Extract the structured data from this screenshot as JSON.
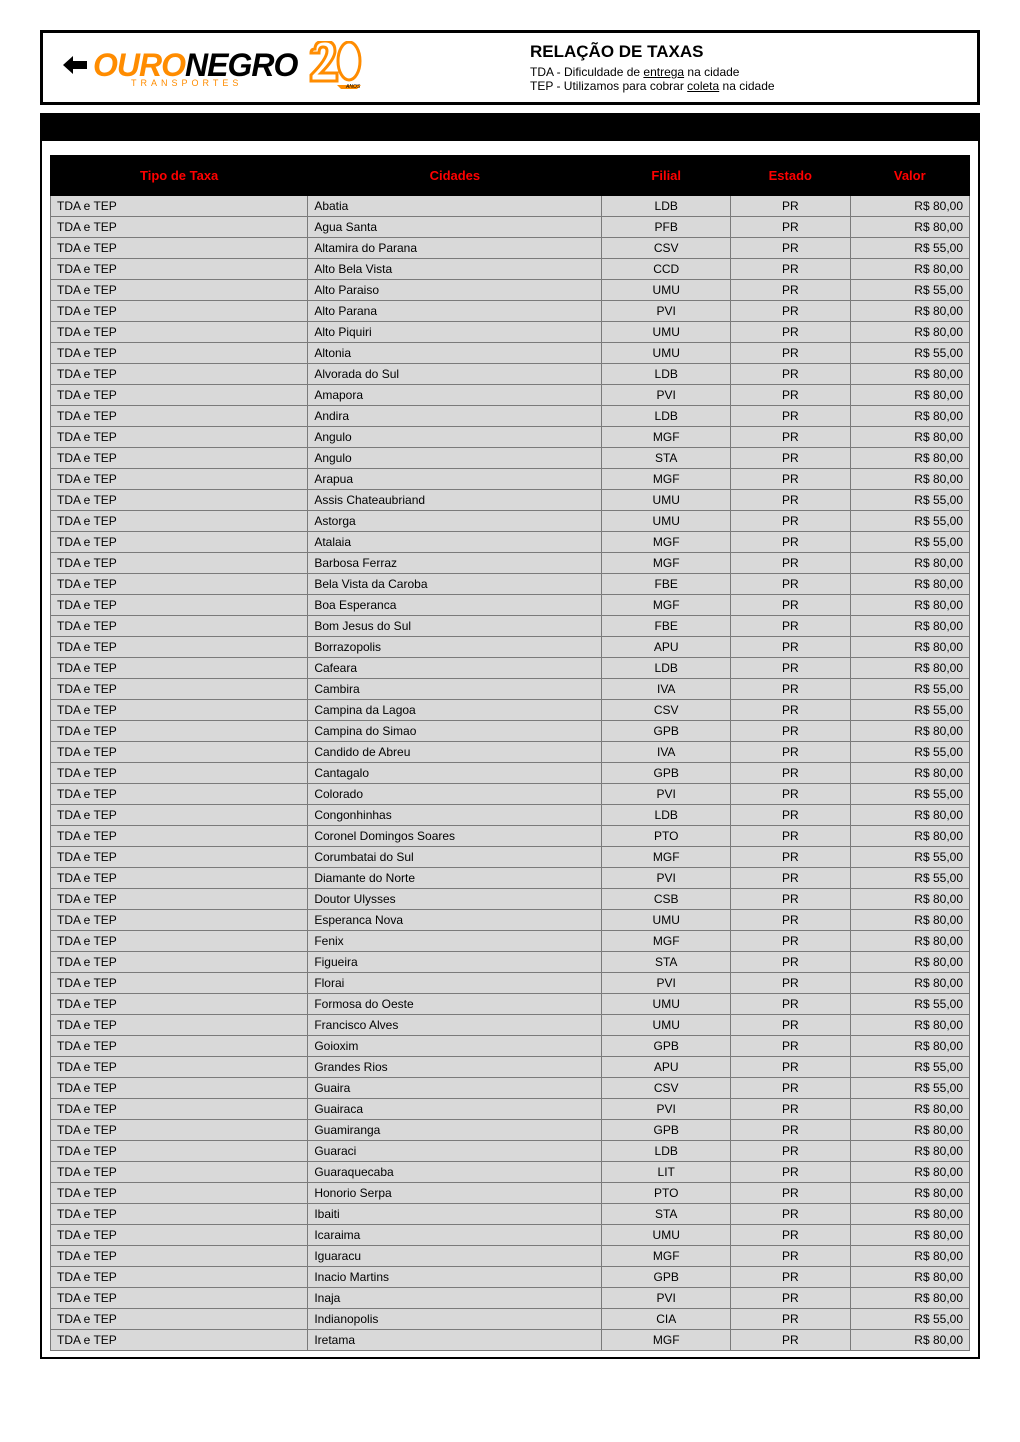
{
  "header": {
    "logo_ouro": "OURO",
    "logo_negro": "NEGRO",
    "logo_transportes": "TRANSPORTES",
    "title": "RELAÇÃO DE TAXAS",
    "sub1_prefix": "TDA - Dificuldade de ",
    "sub1_underline": "entrega",
    "sub1_suffix": " na cidade",
    "sub2_prefix": "TEP - Utilizamos para cobrar ",
    "sub2_underline": "coleta",
    "sub2_suffix": " na cidade"
  },
  "table": {
    "columns": {
      "tipo": "Tipo de Taxa",
      "cidade": "Cidades",
      "filial": "Filial",
      "estado": "Estado",
      "valor": "Valor"
    },
    "rows": [
      {
        "tipo": "TDA e TEP",
        "cidade": "Abatia",
        "filial": "LDB",
        "estado": "PR",
        "valor": "R$ 80,00"
      },
      {
        "tipo": "TDA e TEP",
        "cidade": "Agua Santa",
        "filial": "PFB",
        "estado": "PR",
        "valor": "R$ 80,00"
      },
      {
        "tipo": "TDA e TEP",
        "cidade": "Altamira do Parana",
        "filial": "CSV",
        "estado": "PR",
        "valor": "R$ 55,00"
      },
      {
        "tipo": "TDA e TEP",
        "cidade": "Alto Bela Vista",
        "filial": "CCD",
        "estado": "PR",
        "valor": "R$ 80,00"
      },
      {
        "tipo": "TDA e TEP",
        "cidade": "Alto Paraiso",
        "filial": "UMU",
        "estado": "PR",
        "valor": "R$ 55,00"
      },
      {
        "tipo": "TDA e TEP",
        "cidade": "Alto Parana",
        "filial": "PVI",
        "estado": "PR",
        "valor": "R$ 80,00"
      },
      {
        "tipo": "TDA e TEP",
        "cidade": "Alto Piquiri",
        "filial": "UMU",
        "estado": "PR",
        "valor": "R$ 80,00"
      },
      {
        "tipo": "TDA e TEP",
        "cidade": "Altonia",
        "filial": "UMU",
        "estado": "PR",
        "valor": "R$ 55,00"
      },
      {
        "tipo": "TDA e TEP",
        "cidade": "Alvorada do Sul",
        "filial": "LDB",
        "estado": "PR",
        "valor": "R$ 80,00"
      },
      {
        "tipo": "TDA e TEP",
        "cidade": "Amapora",
        "filial": "PVI",
        "estado": "PR",
        "valor": "R$ 80,00"
      },
      {
        "tipo": "TDA e TEP",
        "cidade": "Andira",
        "filial": "LDB",
        "estado": "PR",
        "valor": "R$ 80,00"
      },
      {
        "tipo": "TDA e TEP",
        "cidade": "Angulo",
        "filial": "MGF",
        "estado": "PR",
        "valor": "R$ 80,00"
      },
      {
        "tipo": "TDA e TEP",
        "cidade": "Angulo",
        "filial": "STA",
        "estado": "PR",
        "valor": "R$ 80,00"
      },
      {
        "tipo": "TDA e TEP",
        "cidade": "Arapua",
        "filial": "MGF",
        "estado": "PR",
        "valor": "R$ 80,00"
      },
      {
        "tipo": "TDA e TEP",
        "cidade": "Assis Chateaubriand",
        "filial": "UMU",
        "estado": "PR",
        "valor": "R$ 55,00"
      },
      {
        "tipo": "TDA e TEP",
        "cidade": "Astorga",
        "filial": "UMU",
        "estado": "PR",
        "valor": "R$ 55,00"
      },
      {
        "tipo": "TDA e TEP",
        "cidade": "Atalaia",
        "filial": "MGF",
        "estado": "PR",
        "valor": "R$ 55,00"
      },
      {
        "tipo": "TDA e TEP",
        "cidade": "Barbosa Ferraz",
        "filial": "MGF",
        "estado": "PR",
        "valor": "R$ 80,00"
      },
      {
        "tipo": "TDA e TEP",
        "cidade": "Bela Vista da Caroba",
        "filial": "FBE",
        "estado": "PR",
        "valor": "R$ 80,00"
      },
      {
        "tipo": "TDA e TEP",
        "cidade": "Boa Esperanca",
        "filial": "MGF",
        "estado": "PR",
        "valor": "R$ 80,00"
      },
      {
        "tipo": "TDA e TEP",
        "cidade": "Bom Jesus do Sul",
        "filial": "FBE",
        "estado": "PR",
        "valor": "R$ 80,00"
      },
      {
        "tipo": "TDA e TEP",
        "cidade": "Borrazopolis",
        "filial": "APU",
        "estado": "PR",
        "valor": "R$ 80,00"
      },
      {
        "tipo": "TDA e TEP",
        "cidade": "Cafeara",
        "filial": "LDB",
        "estado": "PR",
        "valor": "R$ 80,00"
      },
      {
        "tipo": "TDA e TEP",
        "cidade": "Cambira",
        "filial": "IVA",
        "estado": "PR",
        "valor": "R$ 55,00"
      },
      {
        "tipo": "TDA e TEP",
        "cidade": "Campina da Lagoa",
        "filial": "CSV",
        "estado": "PR",
        "valor": "R$ 55,00"
      },
      {
        "tipo": "TDA e TEP",
        "cidade": "Campina do Simao",
        "filial": "GPB",
        "estado": "PR",
        "valor": "R$ 80,00"
      },
      {
        "tipo": "TDA e TEP",
        "cidade": "Candido de Abreu",
        "filial": "IVA",
        "estado": "PR",
        "valor": "R$ 55,00"
      },
      {
        "tipo": "TDA e TEP",
        "cidade": "Cantagalo",
        "filial": "GPB",
        "estado": "PR",
        "valor": "R$ 80,00"
      },
      {
        "tipo": "TDA e TEP",
        "cidade": "Colorado",
        "filial": "PVI",
        "estado": "PR",
        "valor": "R$ 55,00"
      },
      {
        "tipo": "TDA e TEP",
        "cidade": "Congonhinhas",
        "filial": "LDB",
        "estado": "PR",
        "valor": "R$ 80,00"
      },
      {
        "tipo": "TDA e TEP",
        "cidade": "Coronel Domingos Soares",
        "filial": "PTO",
        "estado": "PR",
        "valor": "R$ 80,00"
      },
      {
        "tipo": "TDA e TEP",
        "cidade": "Corumbatai do Sul",
        "filial": "MGF",
        "estado": "PR",
        "valor": "R$ 55,00"
      },
      {
        "tipo": "TDA e TEP",
        "cidade": "Diamante do Norte",
        "filial": "PVI",
        "estado": "PR",
        "valor": "R$ 55,00"
      },
      {
        "tipo": "TDA e TEP",
        "cidade": "Doutor Ulysses",
        "filial": "CSB",
        "estado": "PR",
        "valor": "R$ 80,00"
      },
      {
        "tipo": "TDA e TEP",
        "cidade": "Esperanca Nova",
        "filial": "UMU",
        "estado": "PR",
        "valor": "R$ 80,00"
      },
      {
        "tipo": "TDA e TEP",
        "cidade": "Fenix",
        "filial": "MGF",
        "estado": "PR",
        "valor": "R$ 80,00"
      },
      {
        "tipo": "TDA e TEP",
        "cidade": "Figueira",
        "filial": "STA",
        "estado": "PR",
        "valor": "R$ 80,00"
      },
      {
        "tipo": "TDA e TEP",
        "cidade": "Florai",
        "filial": "PVI",
        "estado": "PR",
        "valor": "R$ 80,00"
      },
      {
        "tipo": "TDA e TEP",
        "cidade": "Formosa do Oeste",
        "filial": "UMU",
        "estado": "PR",
        "valor": "R$ 55,00"
      },
      {
        "tipo": "TDA e TEP",
        "cidade": "Francisco Alves",
        "filial": "UMU",
        "estado": "PR",
        "valor": "R$ 80,00"
      },
      {
        "tipo": "TDA e TEP",
        "cidade": "Goioxim",
        "filial": "GPB",
        "estado": "PR",
        "valor": "R$ 80,00"
      },
      {
        "tipo": "TDA e TEP",
        "cidade": "Grandes Rios",
        "filial": "APU",
        "estado": "PR",
        "valor": "R$ 55,00"
      },
      {
        "tipo": "TDA e TEP",
        "cidade": "Guaira",
        "filial": "CSV",
        "estado": "PR",
        "valor": "R$ 55,00"
      },
      {
        "tipo": "TDA e TEP",
        "cidade": "Guairaca",
        "filial": "PVI",
        "estado": "PR",
        "valor": "R$ 80,00"
      },
      {
        "tipo": "TDA e TEP",
        "cidade": "Guamiranga",
        "filial": "GPB",
        "estado": "PR",
        "valor": "R$ 80,00"
      },
      {
        "tipo": "TDA e TEP",
        "cidade": "Guaraci",
        "filial": "LDB",
        "estado": "PR",
        "valor": "R$ 80,00"
      },
      {
        "tipo": "TDA e TEP",
        "cidade": "Guaraquecaba",
        "filial": "LIT",
        "estado": "PR",
        "valor": "R$ 80,00"
      },
      {
        "tipo": "TDA e TEP",
        "cidade": "Honorio Serpa",
        "filial": "PTO",
        "estado": "PR",
        "valor": "R$ 80,00"
      },
      {
        "tipo": "TDA e TEP",
        "cidade": "Ibaiti",
        "filial": "STA",
        "estado": "PR",
        "valor": "R$ 80,00"
      },
      {
        "tipo": "TDA e TEP",
        "cidade": "Icaraima",
        "filial": "UMU",
        "estado": "PR",
        "valor": "R$ 80,00"
      },
      {
        "tipo": "TDA e TEP",
        "cidade": "Iguaracu",
        "filial": "MGF",
        "estado": "PR",
        "valor": "R$ 80,00"
      },
      {
        "tipo": "TDA e TEP",
        "cidade": "Inacio Martins",
        "filial": "GPB",
        "estado": "PR",
        "valor": "R$ 80,00"
      },
      {
        "tipo": "TDA e TEP",
        "cidade": "Inaja",
        "filial": "PVI",
        "estado": "PR",
        "valor": "R$ 80,00"
      },
      {
        "tipo": "TDA e TEP",
        "cidade": "Indianopolis",
        "filial": "CIA",
        "estado": "PR",
        "valor": "R$ 55,00"
      },
      {
        "tipo": "TDA e TEP",
        "cidade": "Iretama",
        "filial": "MGF",
        "estado": "PR",
        "valor": "R$ 80,00"
      }
    ],
    "styling": {
      "header_bg": "#000000",
      "header_text_color": "#ff0000",
      "cell_bg": "#d9d9d9",
      "cell_text_color": "#000000",
      "border_color": "#7a7a7a",
      "font_size_header": 13,
      "font_size_cell": 12,
      "col_widths": {
        "tipo": "28%",
        "cidade": "32%",
        "filial": "14%",
        "estado": "13%",
        "valor": "13%"
      },
      "col_align": {
        "tipo": "left",
        "cidade": "left",
        "filial": "center",
        "estado": "center",
        "valor": "right"
      }
    }
  },
  "colors": {
    "logo_orange": "#ff8c00",
    "black": "#000000",
    "white": "#ffffff",
    "cell_gray": "#d9d9d9"
  }
}
